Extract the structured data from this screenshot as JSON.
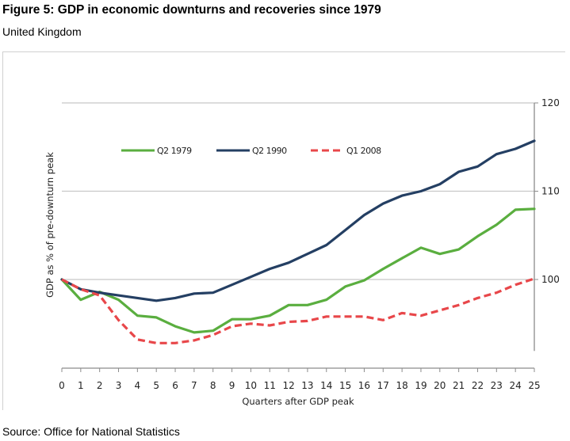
{
  "figure": {
    "title": "Figure 5: GDP in economic downturns and recoveries since 1979",
    "subtitle": "United Kingdom",
    "source": "Source: Office for National Statistics"
  },
  "colors": {
    "q2_1979": "#5aae3f",
    "q2_1990": "#243f63",
    "q1_2008": "#e8474a",
    "grid": "#c8c8c8",
    "axis": "#8c8c8c"
  },
  "chart_data": {
    "type": "line",
    "title": "Figure 5: GDP in economic downturns and recoveries since 1979",
    "subtitle": "United Kingdom",
    "xlabel": "Quarters after GDP peak",
    "ylabel": "GDP as % of pre-downturn peak",
    "x": [
      0,
      1,
      2,
      3,
      4,
      5,
      6,
      7,
      8,
      9,
      10,
      11,
      12,
      13,
      14,
      15,
      16,
      17,
      18,
      19,
      20,
      21,
      22,
      23,
      24,
      25
    ],
    "x_tick_labels": [
      "0",
      "1",
      "2",
      "3",
      "4",
      "5",
      "6",
      "7",
      "8",
      "9",
      "10",
      "11",
      "12",
      "13",
      "14",
      "15",
      "16",
      "17",
      "18",
      "19",
      "20",
      "21",
      "22",
      "23",
      "24",
      "25"
    ],
    "xlim": [
      0,
      25
    ],
    "ylim": [
      92,
      120
    ],
    "y_ticks": [
      100,
      110,
      120
    ],
    "y_tick_labels": [
      "100",
      "110",
      "120"
    ],
    "y_axis_side": "right",
    "grid": "horizontal",
    "legend_position": "top-left inside plot",
    "series": [
      {
        "name": "Q2 1979",
        "style": "solid",
        "color_key": "q2_1979",
        "values": [
          100,
          97.7,
          98.6,
          97.7,
          95.9,
          95.7,
          94.7,
          94.0,
          94.2,
          95.5,
          95.5,
          95.9,
          97.1,
          97.1,
          97.7,
          99.2,
          99.9,
          101.2,
          102.4,
          103.6,
          102.9,
          103.4,
          104.9,
          106.2,
          107.9,
          108.0
        ]
      },
      {
        "name": "Q2 1990",
        "style": "solid",
        "color_key": "q2_1990",
        "values": [
          100,
          98.9,
          98.5,
          98.2,
          97.9,
          97.6,
          97.9,
          98.4,
          98.5,
          99.4,
          100.3,
          101.2,
          101.9,
          102.9,
          103.9,
          105.6,
          107.3,
          108.6,
          109.5,
          110.0,
          110.8,
          112.2,
          112.8,
          114.2,
          114.8,
          115.7
        ]
      },
      {
        "name": "Q1 2008",
        "style": "dashed",
        "color_key": "q1_2008",
        "values": [
          100,
          98.9,
          98.2,
          95.4,
          93.2,
          92.8,
          92.8,
          93.1,
          93.7,
          94.7,
          95.0,
          94.8,
          95.2,
          95.3,
          95.8,
          95.8,
          95.8,
          95.4,
          96.2,
          95.9,
          96.5,
          97.1,
          97.9,
          98.5,
          99.4,
          100.1
        ]
      }
    ]
  }
}
